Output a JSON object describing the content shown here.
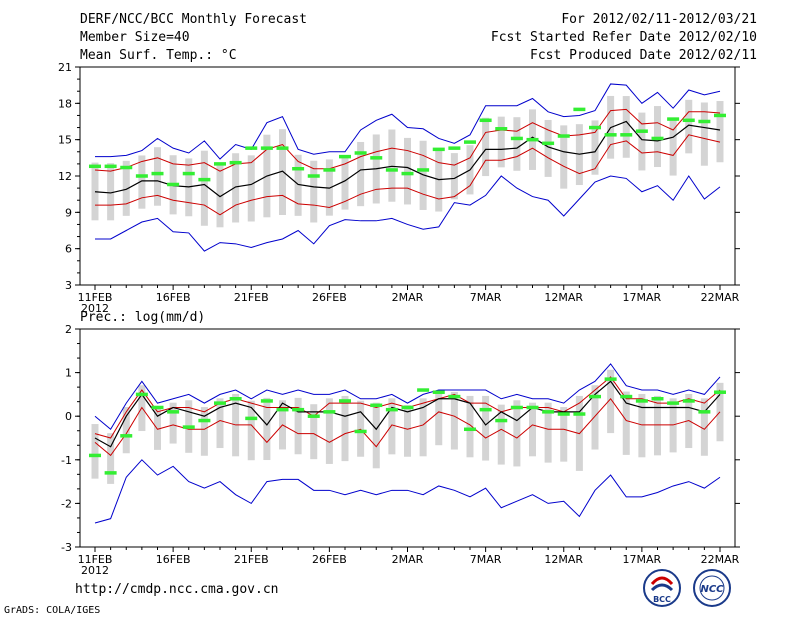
{
  "header": {
    "title": "DERF/NCC/BCC Monthly Forecast",
    "member": "Member Size=40",
    "variable": "Mean Surf. Temp.: °C",
    "period": "For 2012/02/11-2012/03/21",
    "started": "Fcst Started Refer Date 2012/02/10",
    "produced": "Fcst Produced Date 2012/02/11"
  },
  "footer": {
    "url": "http://cmdp.ncc.cma.gov.cn",
    "grads": "GrADS: COLA/IGES",
    "logo_bcc": "BCC",
    "logo_ncc": "NCC"
  },
  "colors": {
    "max_min": "#0000cc",
    "spread": "#cc0000",
    "mean": "#000000",
    "obs": "#33ee33",
    "box": "#d4d4d4"
  },
  "chart_data": [
    {
      "type": "line",
      "title": "Mean Surf. Temp.: °C",
      "x_ticks": [
        "11FEB",
        "16FEB",
        "21FEB",
        "26FEB",
        "2MAR",
        "7MAR",
        "12MAR",
        "17MAR",
        "22MAR"
      ],
      "year_label": "2012",
      "xlim": [
        0,
        40
      ],
      "ylim": [
        3,
        21
      ],
      "y_ticks": [
        3,
        6,
        9,
        12,
        15,
        18,
        21
      ],
      "series": [
        {
          "name": "max",
          "values": [
            13.6,
            13.6,
            13.7,
            14.1,
            15.1,
            14.3,
            13.9,
            14.9,
            13.4,
            14.6,
            14.2,
            16.4,
            16.9,
            14.2,
            13.8,
            14.0,
            14.0,
            15.8,
            16.6,
            17.1,
            16.0,
            15.9,
            15.1,
            14.7,
            15.4,
            17.8,
            17.8,
            17.8,
            18.4,
            17.3,
            16.9,
            17.0,
            17.4,
            19.6,
            19.5,
            18.0,
            18.9,
            17.6,
            19.1,
            18.7,
            19.0
          ]
        },
        {
          "name": "upper",
          "values": [
            12.5,
            12.4,
            12.7,
            13.2,
            13.5,
            13.0,
            12.9,
            13.1,
            12.4,
            13.0,
            13.1,
            14.2,
            14.6,
            13.2,
            12.6,
            12.6,
            13.0,
            13.6,
            14.0,
            14.3,
            14.1,
            13.7,
            13.1,
            12.9,
            13.5,
            15.6,
            15.8,
            15.7,
            16.4,
            15.8,
            15.3,
            15.4,
            15.6,
            17.4,
            17.5,
            16.3,
            16.4,
            15.8,
            17.3,
            17.3,
            17.2
          ]
        },
        {
          "name": "mean",
          "values": [
            10.7,
            10.6,
            10.9,
            11.6,
            11.6,
            11.2,
            11.1,
            11.3,
            10.3,
            11.1,
            11.3,
            12.0,
            12.4,
            11.3,
            11.1,
            11.0,
            11.6,
            12.5,
            12.6,
            12.8,
            12.7,
            12.1,
            11.7,
            11.8,
            12.5,
            14.2,
            14.2,
            14.3,
            15.2,
            14.4,
            14.0,
            13.8,
            14.0,
            16.0,
            16.5,
            15.0,
            14.9,
            15.2,
            16.2,
            16.0,
            15.8
          ]
        },
        {
          "name": "lower",
          "values": [
            9.6,
            9.6,
            9.7,
            10.2,
            10.4,
            10.0,
            9.8,
            9.6,
            8.8,
            9.6,
            10.0,
            10.3,
            10.4,
            9.7,
            9.6,
            9.4,
            9.9,
            10.5,
            10.9,
            11.0,
            11.0,
            10.5,
            10.1,
            10.3,
            11.2,
            13.3,
            13.3,
            13.6,
            14.3,
            13.5,
            12.8,
            12.2,
            12.6,
            14.6,
            14.9,
            13.9,
            14.0,
            13.7,
            15.4,
            15.1,
            14.8
          ]
        },
        {
          "name": "min",
          "values": [
            6.8,
            6.8,
            7.5,
            8.2,
            8.5,
            7.4,
            7.3,
            5.8,
            6.5,
            6.4,
            6.1,
            6.5,
            6.8,
            7.5,
            6.4,
            7.9,
            8.4,
            8.3,
            8.3,
            8.5,
            8.0,
            7.6,
            7.8,
            9.8,
            9.6,
            10.4,
            12.0,
            11.0,
            10.3,
            10.0,
            8.7,
            10.1,
            11.5,
            12.0,
            11.8,
            10.7,
            11.2,
            10.0,
            12.0,
            10.1,
            11.1
          ]
        },
        {
          "name": "obs",
          "values": [
            12.8,
            12.8,
            12.7,
            12.0,
            12.2,
            11.3,
            12.2,
            11.7,
            13.0,
            13.1,
            14.3,
            14.3,
            14.3,
            12.6,
            12.0,
            12.5,
            13.6,
            13.9,
            13.5,
            12.5,
            12.2,
            12.5,
            14.2,
            14.3,
            14.8,
            16.6,
            15.9,
            15.1,
            15.0,
            14.7,
            15.3,
            17.5,
            16.0,
            15.4,
            15.4,
            15.7,
            15.1,
            16.7,
            16.6,
            16.5,
            17.0
          ]
        }
      ],
      "box_range_hint": "gray bars span ensemble range"
    },
    {
      "type": "line",
      "title": "Prec.: log(mm/d)",
      "x_ticks": [
        "11FEB",
        "16FEB",
        "21FEB",
        "26FEB",
        "2MAR",
        "7MAR",
        "12MAR",
        "17MAR",
        "22MAR"
      ],
      "year_label": "2012",
      "xlim": [
        0,
        40
      ],
      "ylim": [
        -3,
        2
      ],
      "y_ticks": [
        -3,
        -2,
        -1,
        0,
        1,
        2
      ],
      "series": [
        {
          "name": "max",
          "values": [
            0.0,
            -0.3,
            0.3,
            0.8,
            0.3,
            0.4,
            0.5,
            0.3,
            0.5,
            0.6,
            0.4,
            0.6,
            0.5,
            0.6,
            0.5,
            0.5,
            0.6,
            0.4,
            0.4,
            0.5,
            0.3,
            0.5,
            0.6,
            0.6,
            0.6,
            0.6,
            0.4,
            0.5,
            0.4,
            0.4,
            0.3,
            0.6,
            0.8,
            1.2,
            0.7,
            0.6,
            0.6,
            0.5,
            0.6,
            0.5,
            0.9
          ]
        },
        {
          "name": "upper",
          "values": [
            -0.4,
            -0.5,
            0.1,
            0.6,
            0.1,
            0.2,
            0.2,
            0.1,
            0.3,
            0.4,
            0.3,
            0.2,
            0.2,
            0.2,
            0.0,
            0.3,
            0.3,
            0.3,
            0.2,
            0.3,
            0.2,
            0.3,
            0.4,
            0.5,
            0.3,
            0.3,
            0.1,
            0.2,
            0.2,
            0.2,
            0.1,
            0.3,
            0.6,
            0.9,
            0.4,
            0.4,
            0.3,
            0.3,
            0.4,
            0.3,
            0.6
          ]
        },
        {
          "name": "mean",
          "values": [
            -0.5,
            -0.7,
            0.0,
            0.5,
            0.0,
            0.2,
            0.1,
            0.0,
            0.2,
            0.3,
            0.2,
            -0.2,
            0.3,
            0.1,
            0.1,
            0.1,
            0.0,
            0.1,
            -0.3,
            0.2,
            0.1,
            0.2,
            0.4,
            0.4,
            0.3,
            -0.2,
            0.1,
            -0.1,
            0.2,
            0.1,
            0.1,
            0.1,
            0.5,
            0.8,
            0.3,
            0.2,
            0.2,
            0.2,
            0.2,
            0.1,
            0.5
          ]
        },
        {
          "name": "lower",
          "values": [
            -0.6,
            -0.9,
            -0.4,
            0.2,
            -0.3,
            -0.2,
            -0.3,
            -0.3,
            -0.1,
            -0.2,
            -0.2,
            -0.6,
            -0.2,
            -0.4,
            -0.4,
            -0.6,
            -0.4,
            -0.3,
            -0.7,
            -0.2,
            -0.3,
            -0.2,
            0.1,
            0.0,
            -0.2,
            -0.5,
            -0.3,
            -0.5,
            -0.2,
            -0.3,
            -0.3,
            -0.4,
            0.0,
            0.4,
            -0.1,
            -0.2,
            -0.2,
            -0.2,
            -0.1,
            -0.3,
            0.1
          ]
        },
        {
          "name": "min",
          "values": [
            -2.45,
            -2.35,
            -1.4,
            -1.0,
            -1.35,
            -1.15,
            -1.5,
            -1.65,
            -1.5,
            -1.8,
            -2.0,
            -1.5,
            -1.45,
            -1.45,
            -1.7,
            -1.7,
            -1.8,
            -1.7,
            -1.8,
            -1.7,
            -1.7,
            -1.8,
            -1.6,
            -1.7,
            -1.85,
            -1.65,
            -2.1,
            -1.95,
            -1.8,
            -2.0,
            -1.95,
            -2.3,
            -1.7,
            -1.35,
            -1.85,
            -1.85,
            -1.75,
            -1.6,
            -1.5,
            -1.65,
            -1.4
          ]
        },
        {
          "name": "obs",
          "values": [
            -0.9,
            -1.3,
            -0.45,
            0.5,
            0.2,
            0.1,
            -0.25,
            -0.1,
            0.3,
            0.4,
            -0.05,
            0.35,
            0.15,
            0.15,
            0.0,
            0.1,
            0.35,
            -0.35,
            0.25,
            0.15,
            0.2,
            0.6,
            0.55,
            0.45,
            -0.3,
            0.15,
            -0.1,
            0.2,
            0.2,
            0.1,
            0.05,
            0.05,
            0.45,
            0.85,
            0.45,
            0.35,
            0.4,
            0.3,
            0.35,
            0.1,
            0.55
          ]
        }
      ]
    }
  ]
}
